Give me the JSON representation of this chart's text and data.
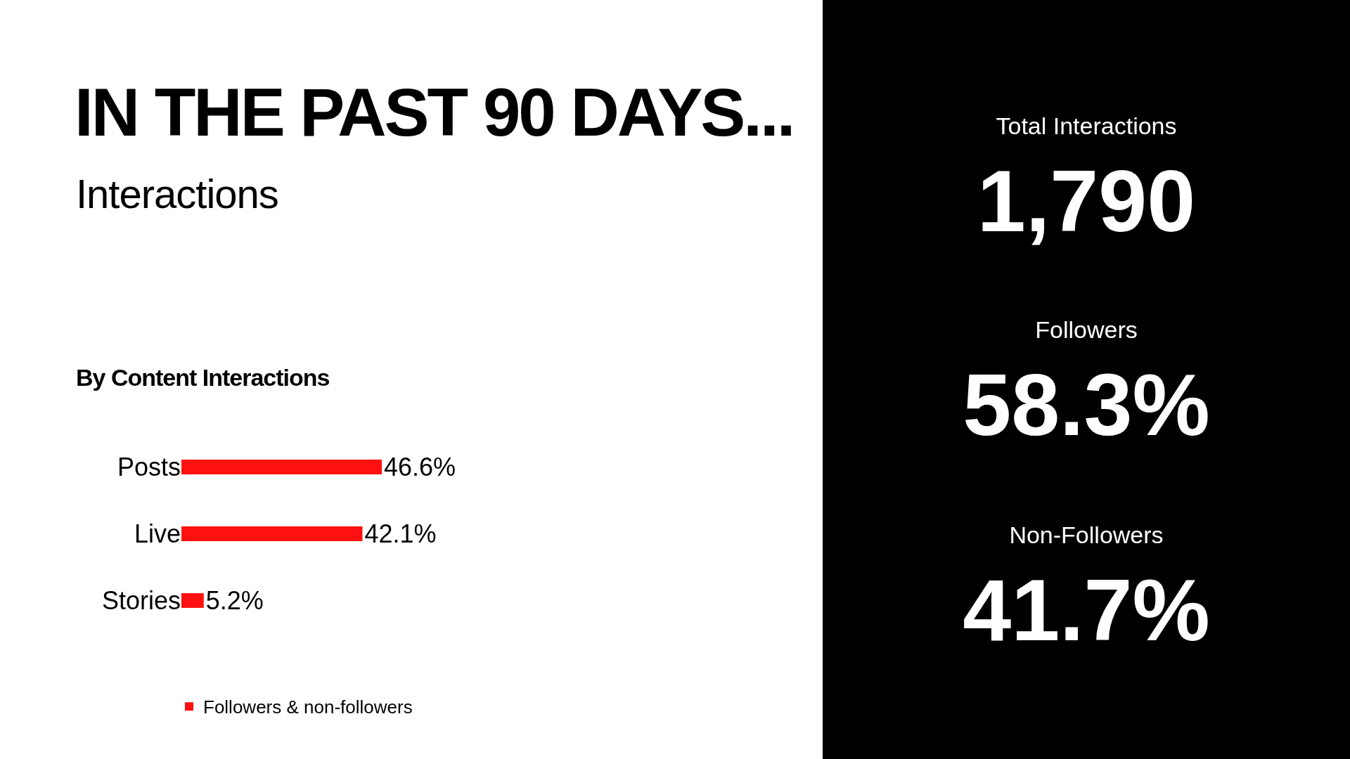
{
  "chart_data": [
    {
      "type": "bar",
      "title": "IN THE PAST 90 DAYS...",
      "subtitle": "Interactions",
      "annotations": [
        "By Content Interactions"
      ],
      "orientation": "horizontal",
      "categories": [
        "Posts",
        "Live",
        "Stories"
      ],
      "series": [
        {
          "name": "Followers & non-followers",
          "color": "#ff1010",
          "values": [
            46.6,
            42.1,
            5.2
          ],
          "value_labels": [
            "46.6%",
            "42.1%",
            "5.2%"
          ]
        }
      ],
      "grid": false,
      "legend": "bottom",
      "tick_labels": "y"
    },
    {
      "type": "other",
      "annotations": [
        "Total Interactions",
        "1,790",
        "Followers",
        "58.3%",
        "Non-Followers",
        "41.7%"
      ]
    }
  ]
}
